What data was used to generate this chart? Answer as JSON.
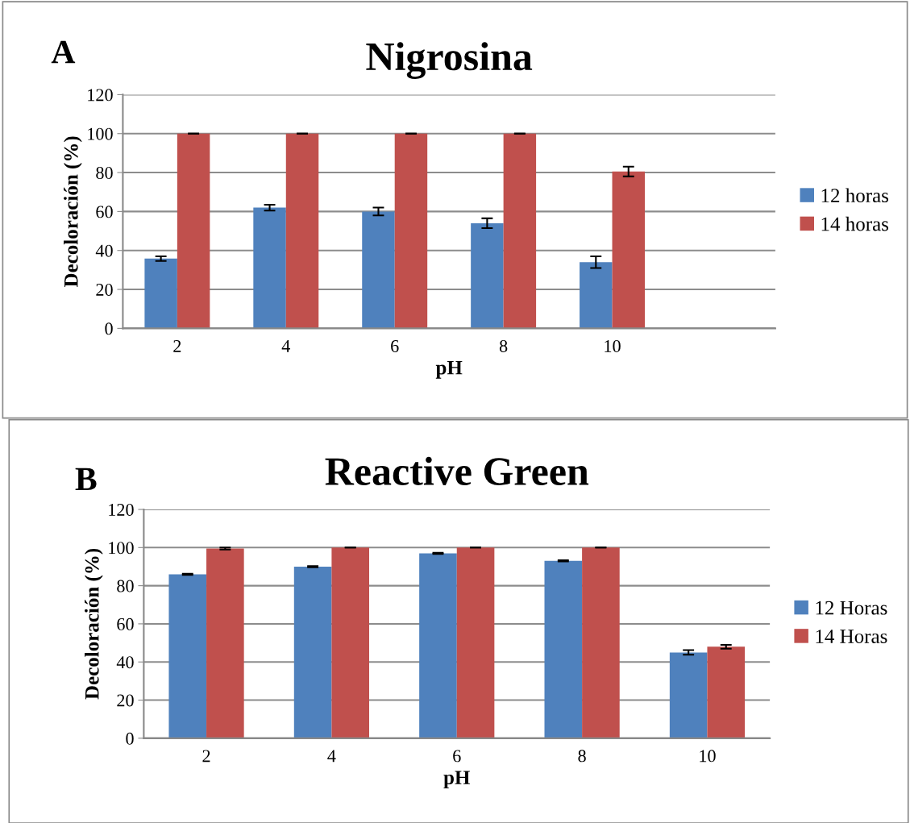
{
  "chart_data": [
    {
      "type": "bar",
      "title": "Nigrosina",
      "xlabel": "pH",
      "ylabel": "Decoloración (%)",
      "annotations": [
        "A"
      ],
      "categories": [
        "2",
        "4",
        "6",
        "8",
        "10",
        null
      ],
      "series": [
        {
          "name": "12 horas",
          "color": "#4f81bd",
          "values": [
            35.8,
            62,
            60,
            54,
            34,
            null
          ],
          "errors": [
            1.2,
            1.5,
            2,
            2.5,
            3,
            null
          ]
        },
        {
          "name": "14 horas",
          "color": "#c0504d",
          "values": [
            100,
            100,
            100,
            100,
            80.5,
            null
          ],
          "errors": [
            0,
            0,
            0,
            0,
            2.5,
            null
          ]
        }
      ],
      "ylim": [
        0,
        120
      ],
      "yticks": [
        0,
        20,
        40,
        60,
        80,
        100,
        120
      ],
      "grid": "y",
      "legend": "right"
    },
    {
      "type": "bar",
      "title": "Reactive Green",
      "xlabel": "pH",
      "ylabel": "Decoloración (%)",
      "annotations": [
        "B"
      ],
      "categories": [
        "2",
        "4",
        "6",
        "8",
        "10"
      ],
      "series": [
        {
          "name": "12 Horas",
          "color": "#4f81bd",
          "values": [
            86,
            90,
            97,
            93,
            45
          ],
          "errors": [
            0.3,
            0.3,
            0.3,
            0.3,
            1.2
          ]
        },
        {
          "name": "14 Horas",
          "color": "#c0504d",
          "values": [
            99.5,
            100,
            100,
            100,
            48
          ],
          "errors": [
            0.5,
            0,
            0,
            0,
            1
          ]
        }
      ],
      "ylim": [
        0,
        120
      ],
      "yticks": [
        0,
        20,
        40,
        60,
        80,
        100,
        120
      ],
      "grid": "y",
      "legend": "right"
    }
  ]
}
